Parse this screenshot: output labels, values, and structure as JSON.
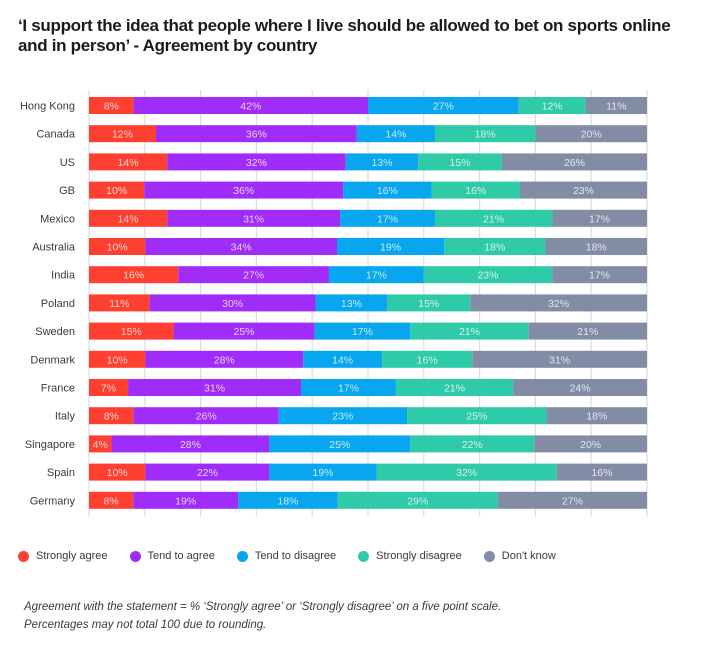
{
  "chart_data": {
    "type": "bar",
    "orientation": "horizontal",
    "stacked": true,
    "normalized": true,
    "title": "‘I support the idea that people where I live should be allowed to bet on sports online and in person’ - Agreement by country",
    "xlabel": "",
    "ylabel": "",
    "xlim": [
      0,
      100
    ],
    "grid": true,
    "legend_position": "bottom-left",
    "categories": [
      "Hong Kong",
      "Canada",
      "US",
      "GB",
      "Mexico",
      "Australia",
      "India",
      "Poland",
      "Sweden",
      "Denmark",
      "France",
      "Italy",
      "Singapore",
      "Spain",
      "Germany"
    ],
    "series": [
      {
        "name": "Strongly agree",
        "color": "#ff4030",
        "values": [
          8,
          12,
          14,
          10,
          14,
          10,
          16,
          11,
          15,
          10,
          7,
          8,
          4,
          10,
          8
        ]
      },
      {
        "name": "Tend to agree",
        "color": "#a02cfa",
        "values": [
          42,
          36,
          32,
          36,
          31,
          34,
          27,
          30,
          25,
          28,
          31,
          26,
          28,
          22,
          19
        ]
      },
      {
        "name": "Tend to disagree",
        "color": "#07a6ee",
        "values": [
          27,
          14,
          13,
          16,
          17,
          19,
          17,
          13,
          17,
          14,
          17,
          23,
          25,
          19,
          18
        ]
      },
      {
        "name": "Strongly disagree",
        "color": "#2fcaa7",
        "values": [
          12,
          18,
          15,
          16,
          21,
          18,
          23,
          15,
          21,
          16,
          21,
          25,
          22,
          32,
          29
        ]
      },
      {
        "name": "Don't know",
        "color": "#828ca5",
        "values": [
          11,
          20,
          26,
          23,
          17,
          18,
          17,
          32,
          21,
          31,
          24,
          18,
          20,
          16,
          27
        ]
      }
    ],
    "label_suffix": "%"
  },
  "notes": [
    "Agreement with the statement = % ‘Strongly agree’ or ‘Strongly disagree’ on a five point scale.",
    "Percentages may not total 100 due to rounding."
  ]
}
